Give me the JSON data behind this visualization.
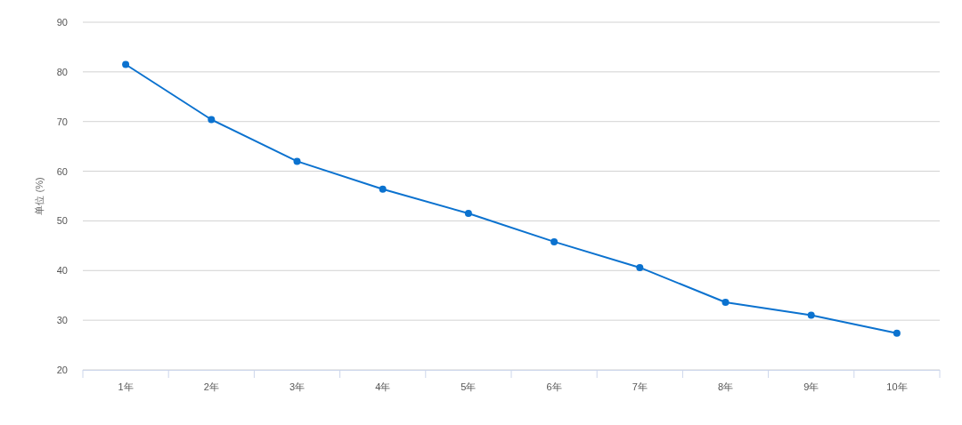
{
  "chart_data": {
    "type": "line",
    "ylabel": "单位 (%)",
    "categories": [
      "1年",
      "2年",
      "3年",
      "4年",
      "5年",
      "6年",
      "7年",
      "8年",
      "9年",
      "10年"
    ],
    "series": [
      {
        "color": "#0b72cf",
        "values": [
          81.5,
          70.4,
          62.0,
          56.4,
          51.5,
          45.8,
          40.6,
          33.6,
          31.0,
          27.4
        ]
      }
    ],
    "ylim": [
      20,
      90
    ],
    "yticks": [
      20,
      30,
      40,
      50,
      60,
      70,
      80,
      90
    ],
    "grid": "y",
    "marker": "circle",
    "line_style": "solid"
  }
}
